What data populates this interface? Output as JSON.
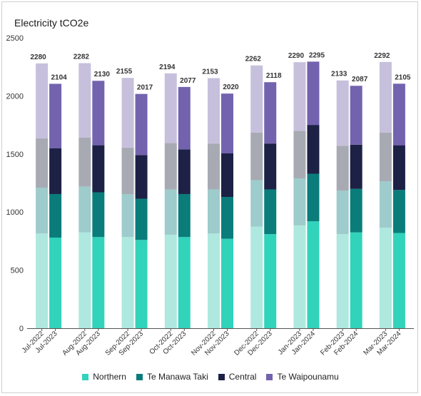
{
  "chart_data": {
    "type": "bar",
    "stacked": true,
    "title": "Electricity tCO2e",
    "ylim": [
      0,
      2500
    ],
    "yticks": [
      0,
      500,
      1000,
      1500,
      2000,
      2500
    ],
    "grid": false,
    "legend_position": "bottom",
    "categories": [
      "Jul-2022",
      "Jul-2023",
      "Aug-2022",
      "Aug-2023",
      "Sep-2022",
      "Sep-2023",
      "Oct-2022",
      "Oct-2023",
      "Nov-2022",
      "Nov-2023",
      "Dec-2022",
      "Dec-2023",
      "Jan-2023",
      "Jan-2024",
      "Feb-2023",
      "Feb-2024",
      "Mar-2023",
      "Mar-2024"
    ],
    "series": [
      {
        "name": "Northern",
        "values": [
          815,
          780,
          825,
          785,
          785,
          760,
          805,
          785,
          815,
          770,
          875,
          810,
          885,
          920,
          810,
          825,
          865,
          820
        ]
      },
      {
        "name": "Te Manawa Taki",
        "values": [
          395,
          375,
          395,
          385,
          370,
          355,
          390,
          370,
          380,
          360,
          400,
          385,
          405,
          410,
          375,
          375,
          400,
          370
        ]
      },
      {
        "name": "Central",
        "values": [
          425,
          395,
          420,
          405,
          400,
          375,
          400,
          385,
          395,
          375,
          410,
          395,
          410,
          420,
          385,
          380,
          420,
          385
        ]
      },
      {
        "name": "Te Waipounamu",
        "values": [
          645,
          554,
          642,
          555,
          600,
          527,
          599,
          537,
          563,
          515,
          577,
          528,
          590,
          545,
          563,
          507,
          607,
          530
        ]
      }
    ],
    "totals": [
      2280,
      2104,
      2282,
      2130,
      2155,
      2017,
      2194,
      2077,
      2153,
      2020,
      2262,
      2118,
      2290,
      2295,
      2133,
      2087,
      2292,
      2105
    ],
    "colors": {
      "prior_year": [
        "#aee8df",
        "#9ecbcb",
        "#a8aab3",
        "#c6c0dc"
      ],
      "current_year": [
        "#31d3bb",
        "#0a7d7b",
        "#1c2145",
        "#7363ae"
      ],
      "axis": "#555555",
      "label": "#333333"
    }
  }
}
